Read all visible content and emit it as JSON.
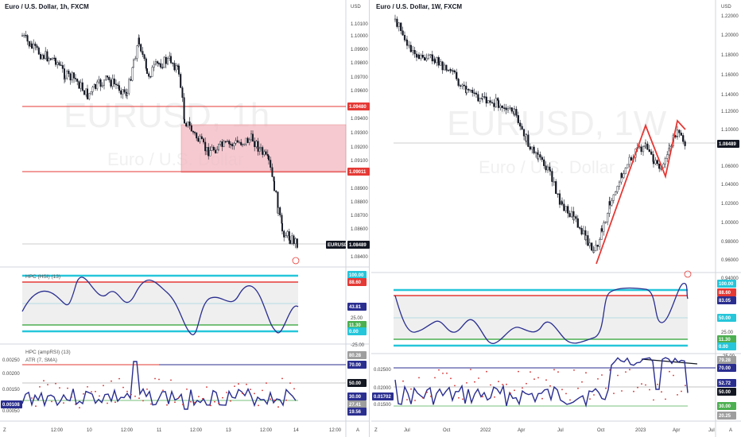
{
  "colors": {
    "up": "#131722",
    "down": "#131722",
    "red_line": "#e53935",
    "zone_fill": "#f3b8c1",
    "osc_line": "#2a2e8f",
    "cyan": "#26c6da",
    "green": "#4caf50",
    "navy_tag": "#2a2e8f",
    "dots": "#d32f2f"
  },
  "left": {
    "title": "Euro / U.S. Dollar, 1h, FXCM",
    "watermark_symbol": "EURUSD, 1h",
    "watermark_name": "Euro / U.S. Dollar",
    "currency": "USD",
    "price_ticks": [
      "1.10100",
      "1.10000",
      "1.09900",
      "1.09800",
      "1.09700",
      "1.09600",
      "1.09400",
      "1.09300",
      "1.09200",
      "1.09100",
      "1.08900",
      "1.08800",
      "1.08700",
      "1.08600",
      "1.08400"
    ],
    "tag_upper": "1.09480",
    "tag_lower": "1.09011",
    "tag_price": "1.08489",
    "tag_symbol": "EURUSD",
    "rsi_label": "HPC (HSI) (13)",
    "rsi_tags": [
      "100.00",
      "88.60",
      "43.81",
      "11.30",
      "0.00"
    ],
    "rsi_ticks": [
      "25.00",
      "-25.00"
    ],
    "atr_label1": "HPC (ampRSI) (13)",
    "atr_label2": "ATR (7, SMA)",
    "atr_ticks": [
      "0.00250",
      "0.00200",
      "0.00150",
      "0.00050"
    ],
    "atr_tag_left": "0.00108",
    "atr_tags": [
      "80.28",
      "70.00",
      "50.00",
      "30.00",
      "27.41",
      "19.56"
    ],
    "time_labels": [
      "12:00",
      "10",
      "12:00",
      "11",
      "12:00",
      "13",
      "12:00",
      "14",
      "12:00",
      "15",
      "12:00"
    ],
    "axis_letter": "A",
    "z_letter": "Z"
  },
  "right": {
    "title": "Euro / U.S. Dollar, 1W, FXCM",
    "watermark_symbol": "EURUSD, 1W",
    "watermark_name": "Euro / U.S. Dollar",
    "currency": "USD",
    "price_ticks": [
      "1.22000",
      "1.20000",
      "1.18000",
      "1.16000",
      "1.14000",
      "1.12000",
      "1.10000",
      "1.06000",
      "1.04000",
      "1.02000",
      "1.00000",
      "0.98000",
      "0.96000",
      "0.94000"
    ],
    "tag_price": "1.08489",
    "rsi_tags": [
      "100.00",
      "88.60",
      "83.05",
      "50.00",
      "11.30",
      "0.00"
    ],
    "rsi_ticks": [
      "25.00",
      "-25.00"
    ],
    "atr_ticks": [
      "0.02500",
      "0.02000",
      "0.01500"
    ],
    "atr_tag_left": "0.01702",
    "atr_tags": [
      "79.28",
      "70.00",
      "52.72",
      "50.00",
      "30.00",
      "20.25"
    ],
    "time_labels": [
      "Jul",
      "Oct",
      "2022",
      "Apr",
      "Jul",
      "Oct",
      "2023",
      "Apr",
      "Jul"
    ],
    "axis_letter": "A",
    "z_letter": "Z"
  }
}
